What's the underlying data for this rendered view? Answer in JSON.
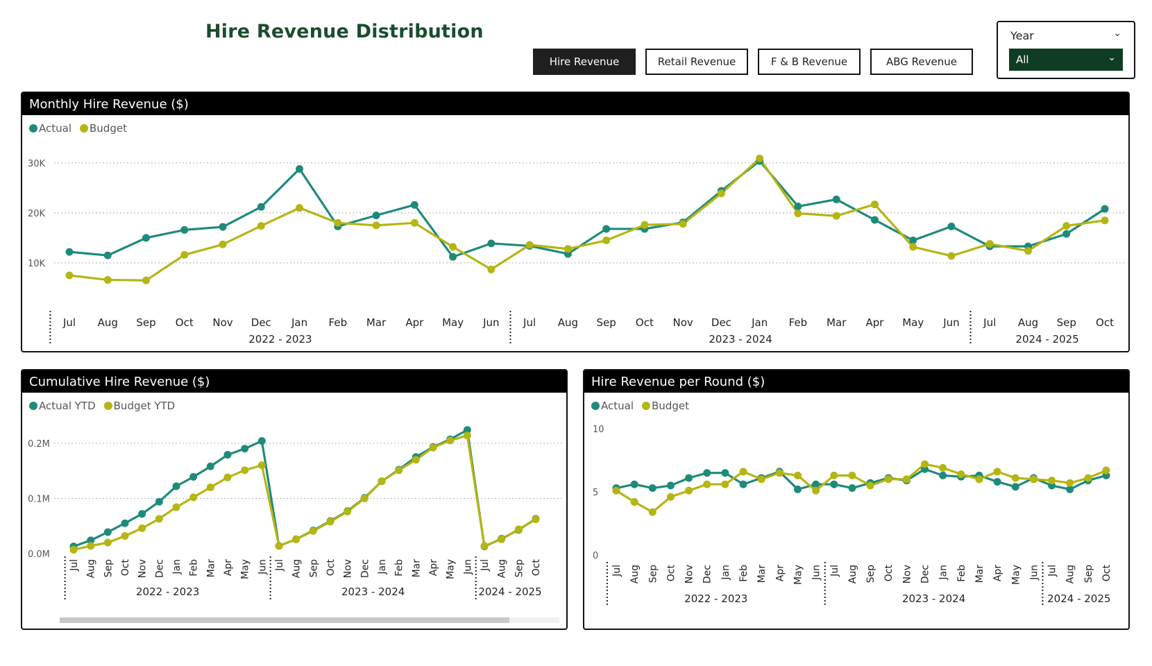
{
  "header": {
    "title": "Hire Revenue Distribution",
    "tabs": [
      {
        "label": "Hire Revenue",
        "active": true
      },
      {
        "label": "Retail Revenue",
        "active": false
      },
      {
        "label": "F & B Revenue",
        "active": false
      },
      {
        "label": "ABG Revenue",
        "active": false
      }
    ]
  },
  "slicer": {
    "label": "Year",
    "value": "All"
  },
  "colors": {
    "actual": "#1e8a7a",
    "budget": "#b5b513",
    "title": "#1b4d2b"
  },
  "chart_data": [
    {
      "type": "line",
      "title": "Monthly Hire Revenue ($)",
      "categories": [
        "Jul",
        "Aug",
        "Sep",
        "Oct",
        "Nov",
        "Dec",
        "Jan",
        "Feb",
        "Mar",
        "Apr",
        "May",
        "Jun",
        "Jul",
        "Aug",
        "Sep",
        "Oct",
        "Nov",
        "Dec",
        "Jan",
        "Feb",
        "Mar",
        "Apr",
        "May",
        "Jun",
        "Jul",
        "Aug",
        "Sep",
        "Oct"
      ],
      "groups": [
        {
          "label": "2022 - 2023",
          "count": 12
        },
        {
          "label": "2023 - 2024",
          "count": 12
        },
        {
          "label": "2024 - 2025",
          "count": 4
        }
      ],
      "series": [
        {
          "name": "Actual",
          "values": [
            12200,
            11500,
            15000,
            16600,
            17200,
            21200,
            28800,
            17300,
            19500,
            21600,
            11200,
            13900,
            13400,
            11800,
            16800,
            16800,
            18100,
            24400,
            30400,
            21300,
            22700,
            18600,
            14500,
            17300,
            13300,
            13300,
            15800,
            20800
          ]
        },
        {
          "name": "Budget",
          "values": [
            7500,
            6600,
            6500,
            11600,
            13700,
            17400,
            21000,
            18000,
            17500,
            18000,
            13200,
            8700,
            13600,
            12800,
            14500,
            17600,
            17800,
            23900,
            30900,
            19900,
            19400,
            21700,
            13200,
            11400,
            13800,
            12400,
            17400,
            18500
          ]
        }
      ],
      "ylim": [
        0,
        34000
      ],
      "yticks": [
        {
          "v": 10000,
          "label": "10K"
        },
        {
          "v": 20000,
          "label": "20K"
        },
        {
          "v": 30000,
          "label": "30K"
        }
      ],
      "grid": true,
      "legend": "top-left"
    },
    {
      "type": "line",
      "title": "Cumulative Hire Revenue ($)",
      "categories": [
        "Jul",
        "Aug",
        "Sep",
        "Oct",
        "Nov",
        "Dec",
        "Jan",
        "Feb",
        "Mar",
        "Apr",
        "May",
        "Jun",
        "Jul",
        "Aug",
        "Sep",
        "Oct",
        "Nov",
        "Dec",
        "Jan",
        "Feb",
        "Mar",
        "Apr",
        "May",
        "Jun",
        "Jul",
        "Aug",
        "Sep",
        "Oct"
      ],
      "groups": [
        {
          "label": "2022 - 2023",
          "count": 12
        },
        {
          "label": "2023 - 2024",
          "count": 12
        },
        {
          "label": "2024 - 2025",
          "count": 4
        }
      ],
      "series": [
        {
          "name": "Actual YTD",
          "values": [
            13000,
            24000,
            39000,
            55000,
            72000,
            94000,
            122000,
            139000,
            158000,
            179000,
            190000,
            204000,
            14000,
            26000,
            42000,
            59000,
            77000,
            101000,
            131000,
            152000,
            175000,
            193000,
            207000,
            224000,
            13000,
            27000,
            43000,
            63000
          ]
        },
        {
          "name": "Budget YTD",
          "values": [
            7000,
            14000,
            20000,
            32000,
            46000,
            63000,
            84000,
            102000,
            120000,
            138000,
            151000,
            160000,
            14000,
            26000,
            41000,
            58000,
            76000,
            100000,
            131000,
            151000,
            170000,
            192000,
            205000,
            214000,
            14000,
            26000,
            44000,
            62000
          ]
        }
      ],
      "ylim": [
        0,
        240000
      ],
      "yticks": [
        {
          "v": 0,
          "label": "0.0M"
        },
        {
          "v": 100000,
          "label": "0.1M"
        },
        {
          "v": 200000,
          "label": "0.2M"
        }
      ],
      "grid": true,
      "legend": "top-left"
    },
    {
      "type": "line",
      "title": "Hire Revenue per Round ($)",
      "categories": [
        "Jul",
        "Aug",
        "Sep",
        "Oct",
        "Nov",
        "Dec",
        "Jan",
        "Feb",
        "Mar",
        "Apr",
        "May",
        "Jun",
        "Jul",
        "Aug",
        "Sep",
        "Oct",
        "Nov",
        "Dec",
        "Jan",
        "Feb",
        "Mar",
        "Apr",
        "May",
        "Jun",
        "Jul",
        "Aug",
        "Sep",
        "Oct"
      ],
      "groups": [
        {
          "label": "2022 - 2023",
          "count": 12
        },
        {
          "label": "2023 - 2024",
          "count": 12
        },
        {
          "label": "2024 - 2025",
          "count": 4
        }
      ],
      "series": [
        {
          "name": "Actual",
          "values": [
            5.3,
            5.6,
            5.3,
            5.5,
            6.1,
            6.5,
            6.5,
            5.6,
            6.1,
            6.6,
            5.2,
            5.6,
            5.6,
            5.3,
            5.7,
            6.1,
            5.9,
            6.8,
            6.3,
            6.2,
            6.3,
            5.8,
            5.4,
            6.1,
            5.5,
            5.2,
            5.9,
            6.3
          ]
        },
        {
          "name": "Budget",
          "values": [
            5.1,
            4.2,
            3.4,
            4.6,
            5.1,
            5.6,
            5.6,
            6.6,
            6.0,
            6.5,
            6.3,
            5.1,
            6.3,
            6.3,
            5.5,
            6.0,
            6.0,
            7.2,
            6.9,
            6.4,
            6.0,
            6.6,
            6.1,
            6.0,
            5.9,
            5.7,
            6.1,
            6.7
          ]
        }
      ],
      "ylim": [
        0,
        10
      ],
      "yticks": [
        {
          "v": 0,
          "label": "0"
        },
        {
          "v": 5,
          "label": "5"
        },
        {
          "v": 10,
          "label": "10"
        }
      ],
      "grid": false,
      "legend": "top-left"
    }
  ]
}
